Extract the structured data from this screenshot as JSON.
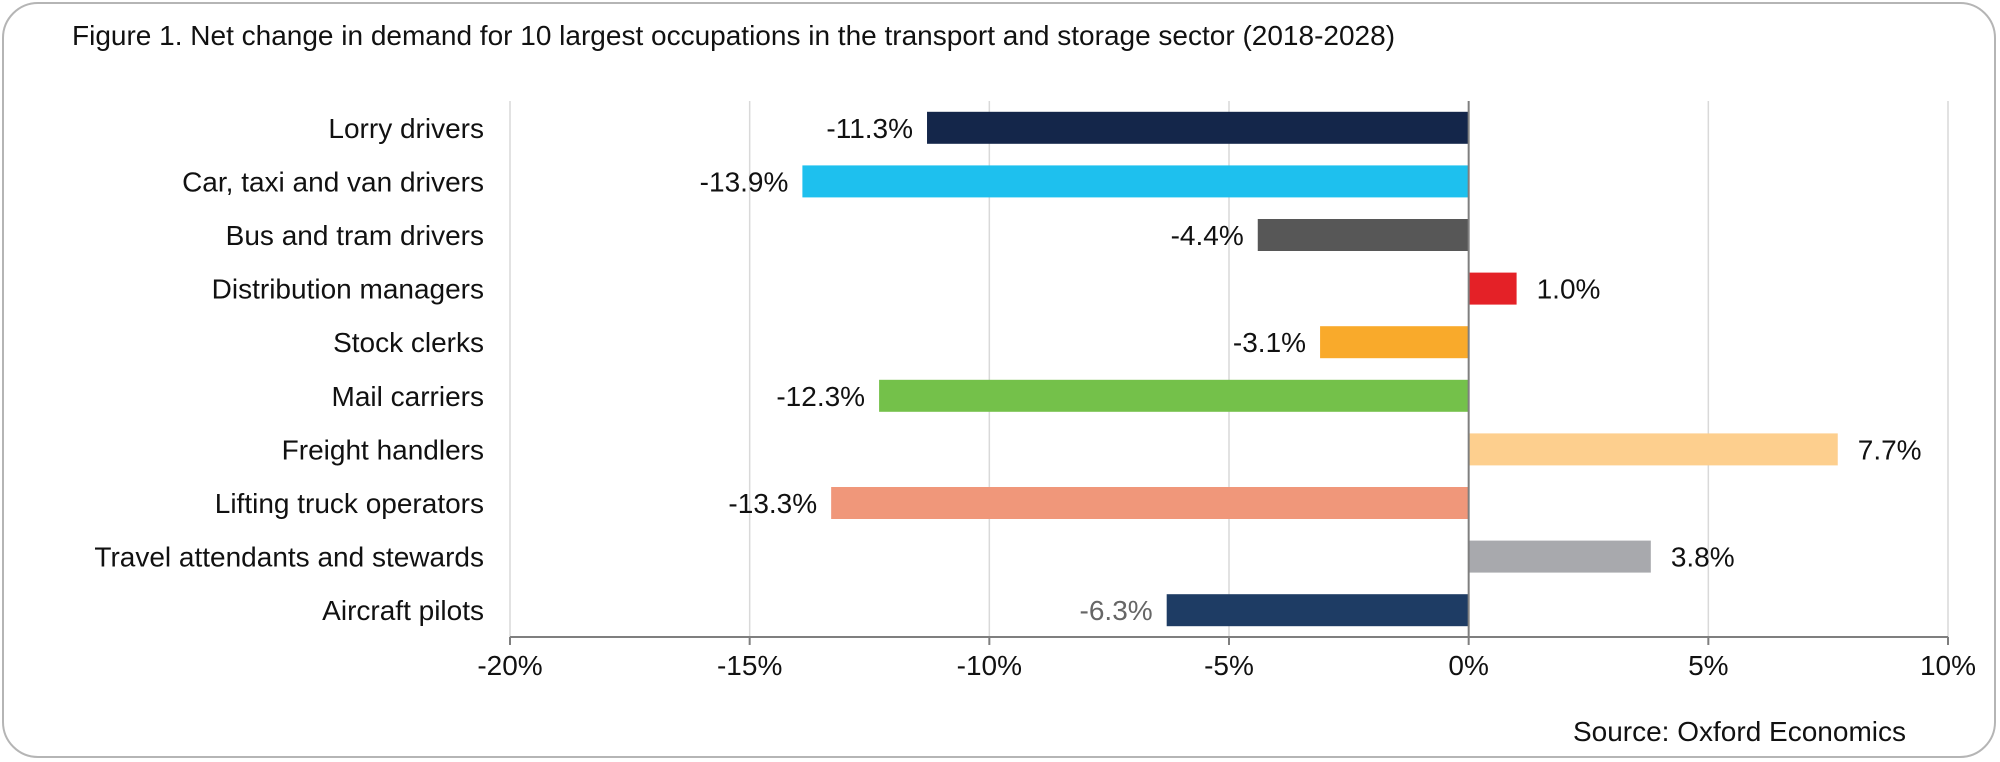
{
  "title": "Figure 1. Net change in demand for 10 largest occupations in the transport and storage sector (2018-2028)",
  "source": "Source: Oxford Economics",
  "chart_data": {
    "type": "bar",
    "orientation": "horizontal",
    "categories": [
      "Lorry drivers",
      "Car, taxi and van drivers",
      "Bus and tram drivers",
      "Distribution managers",
      "Stock clerks",
      "Mail carriers",
      "Freight handlers",
      "Lifting truck operators",
      "Travel attendants and stewards",
      "Aircraft pilots"
    ],
    "values": [
      -11.3,
      -13.9,
      -4.4,
      1.0,
      -3.1,
      -12.3,
      7.7,
      -13.3,
      3.8,
      -6.3
    ],
    "data_labels": [
      "-11.3%",
      "-13.9%",
      "-4.4%",
      "1.0%",
      "-3.1%",
      "-12.3%",
      "7.7%",
      "-13.3%",
      "3.8%",
      "-6.3%"
    ],
    "bar_colors": [
      "#14264a",
      "#1ec0ee",
      "#575757",
      "#e42127",
      "#f9aa2b",
      "#74c14a",
      "#fdcf8e",
      "#f0977a",
      "#a8a9ad",
      "#1e3c64"
    ],
    "label_colors": [
      "#111111",
      "#111111",
      "#111111",
      "#111111",
      "#111111",
      "#111111",
      "#111111",
      "#111111",
      "#111111",
      "#666666"
    ],
    "xlim": [
      -20,
      10
    ],
    "xticks": [
      -20,
      -15,
      -10,
      -5,
      0,
      5,
      10
    ],
    "xtick_labels": [
      "-20%",
      "-15%",
      "-10%",
      "-5%",
      "0%",
      "5%",
      "10%"
    ],
    "grid": true,
    "xlabel": "",
    "ylabel": ""
  }
}
